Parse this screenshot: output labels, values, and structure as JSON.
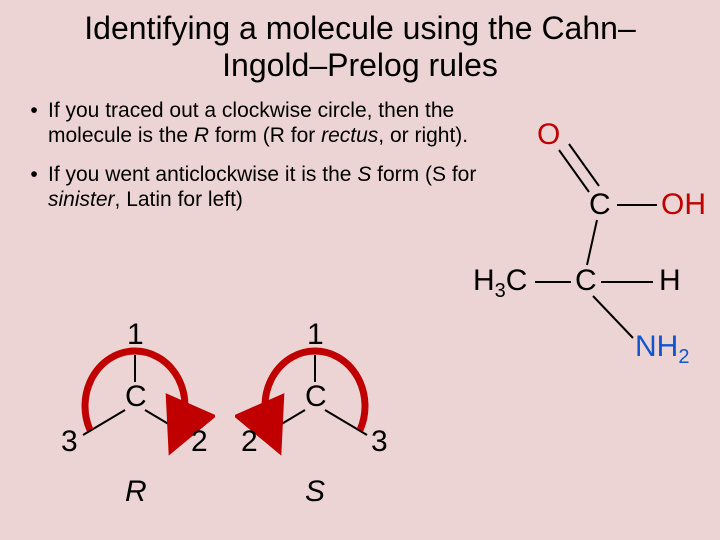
{
  "title": "Identifying a molecule using the Cahn–Ingold–Prelog rules",
  "bullets": [
    "If you traced out a clockwise circle, then the molecule is the <i>R</i> form (R for <i>rectus</i>, or right).",
    "If you went anticlockwise it is the <i>S</i> form (S for <i>sinister</i>, Latin for left)"
  ],
  "rs_diagrams": {
    "R": {
      "priority1": "1",
      "priority2": "2",
      "priority3": "3",
      "center": "C",
      "label": "R",
      "arrow_direction": "clockwise",
      "arrow_color": "#c00000",
      "bond_color": "#000000"
    },
    "S": {
      "priority1": "1",
      "priority2": "2",
      "priority3": "3",
      "center": "C",
      "label": "S",
      "arrow_direction": "anticlockwise",
      "arrow_color": "#c00000",
      "bond_color": "#000000"
    }
  },
  "molecule": {
    "atoms": {
      "O_dbl": {
        "text": "O",
        "color": "red"
      },
      "C_top": {
        "text": "C",
        "color": "black"
      },
      "OH": {
        "text": "OH",
        "color": "red"
      },
      "C_mid": {
        "text": "C",
        "color": "black"
      },
      "H": {
        "text": "H",
        "color": "black"
      },
      "H3C": {
        "text": "H3C",
        "color": "black"
      },
      "NH2": {
        "text": "NH2",
        "color": "blue"
      }
    },
    "bond_color": "#000000",
    "double_bond": true
  },
  "colors": {
    "background": "#edd4d4",
    "text": "#000000",
    "red": "#c00000",
    "blue": "#1155cc"
  },
  "font": {
    "family": "Arial",
    "title_size": 32,
    "body_size": 21,
    "diagram_size": 30
  }
}
